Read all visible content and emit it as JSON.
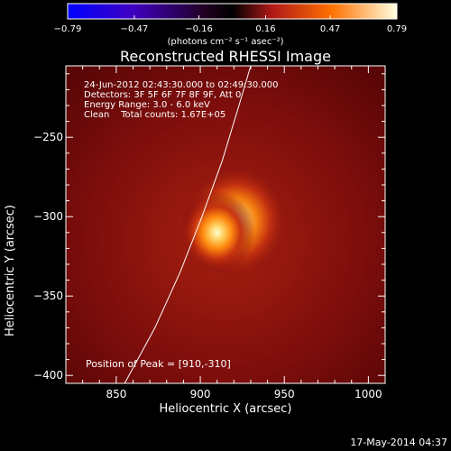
{
  "colorbar": {
    "ticks": [
      "−0.79",
      "−0.47",
      "−0.16",
      "0.16",
      "0.47",
      "0.79"
    ],
    "tick_values": [
      -0.79,
      -0.47,
      -0.16,
      0.16,
      0.47,
      0.79
    ],
    "units": "(photons cm⁻² s⁻¹ asec⁻²)",
    "colors": [
      "#0000ff",
      "#5a00b4",
      "#000000",
      "#b01818",
      "#ff8800",
      "#ffffe0"
    ]
  },
  "info": {
    "time": "24-Jun-2012 02:43:30.000 to 02:49:30.000",
    "detectors": "Detectors: 3F 5F 6F 7F 8F 9F, Att 0",
    "energy": "Energy Range: 3.0 - 6.0 keV",
    "clean": "Clean    Total counts: 1.67E+05",
    "peak": "Position of Peak = [910,-310]"
  },
  "stamp": "17-May-2014 04:37",
  "chart_data": {
    "type": "heatmap",
    "title": "Reconstructed RHESSI Image",
    "xlabel": "Heliocentric X (arcsec)",
    "ylabel": "Heliocentric Y (arcsec)",
    "xlim": [
      820,
      1010
    ],
    "ylim": [
      -405,
      -205
    ],
    "x_ticks": [
      850,
      900,
      950,
      1000
    ],
    "y_ticks": [
      -250,
      -300,
      -350,
      -400
    ],
    "x_tick_labels": [
      "850",
      "900",
      "950",
      "1000"
    ],
    "y_tick_labels": [
      "−250",
      "−300",
      "−350",
      "−400"
    ],
    "peak": {
      "x": 910,
      "y": -310
    },
    "limb_points": [
      [
        855,
        -405
      ],
      [
        873,
        -370
      ],
      [
        888,
        -335
      ],
      [
        901,
        -300
      ],
      [
        913,
        -265
      ],
      [
        923,
        -230
      ],
      [
        930,
        -205
      ]
    ]
  }
}
